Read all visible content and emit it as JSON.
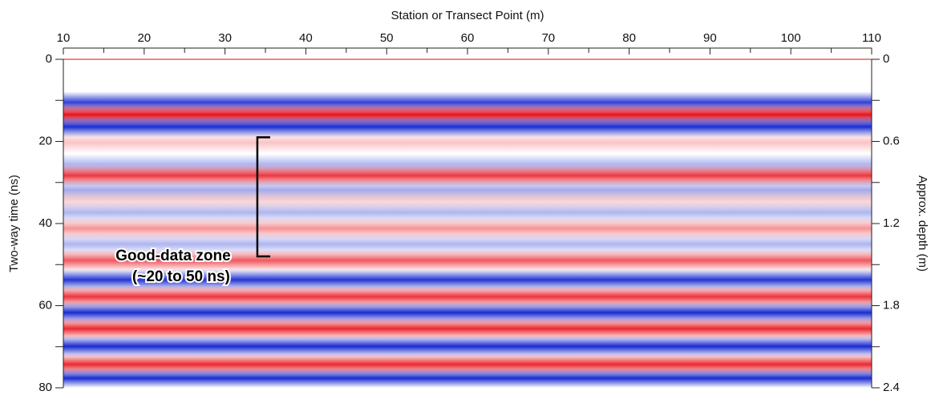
{
  "chart_data": {
    "type": "radargram",
    "title": "Station or Transect Point (m)",
    "y_label": "Two-way time (ns)",
    "y2_label": "Approx. depth (m)",
    "xlim": [
      10,
      110
    ],
    "xticks": [
      10,
      20,
      30,
      40,
      50,
      60,
      70,
      80,
      90,
      100,
      110
    ],
    "xminor": [
      15,
      25,
      35,
      45,
      55,
      65,
      75,
      85,
      95,
      105
    ],
    "ylim": [
      0,
      80
    ],
    "yticks": [
      0,
      20,
      40,
      60,
      80
    ],
    "yminor": [
      10,
      30,
      50,
      70
    ],
    "y2lim": [
      0,
      2.4
    ],
    "y2ticks": [
      0,
      0.6,
      1.2,
      1.8,
      2.4
    ],
    "y2minor": [
      0.3,
      0.9,
      1.5,
      2.1
    ],
    "positive_color": "#e8111b",
    "negative_color": "#1a2bd0",
    "bands": [
      {
        "time": 10.5,
        "amplitude": -0.9
      },
      {
        "time": 13.5,
        "amplitude": 1
      },
      {
        "time": 16.4,
        "amplitude": -1
      },
      {
        "time": 20.3,
        "amplitude": 0.25
      },
      {
        "time": 25.6,
        "amplitude": -0.35
      },
      {
        "time": 28.3,
        "amplitude": 0.85
      },
      {
        "time": 31.8,
        "amplitude": -0.4
      },
      {
        "time": 34.3,
        "amplitude": 0.2
      },
      {
        "time": 37.3,
        "amplitude": -0.35
      },
      {
        "time": 41.2,
        "amplitude": 0.45
      },
      {
        "time": 45,
        "amplitude": -0.35
      },
      {
        "time": 49,
        "amplitude": 0.7
      },
      {
        "time": 53.7,
        "amplitude": -0.95
      },
      {
        "time": 57.8,
        "amplitude": 0.85
      },
      {
        "time": 61.7,
        "amplitude": -1
      },
      {
        "time": 65.6,
        "amplitude": 0.9
      },
      {
        "time": 69.9,
        "amplitude": -1
      },
      {
        "time": 74.3,
        "amplitude": 0.9
      },
      {
        "time": 77.9,
        "amplitude": -1
      }
    ],
    "annotation": {
      "lines": [
        "Good-data zone",
        "(~20 to 50 ns)"
      ],
      "bracket_x": 34,
      "bracket": [
        19,
        48
      ]
    }
  }
}
